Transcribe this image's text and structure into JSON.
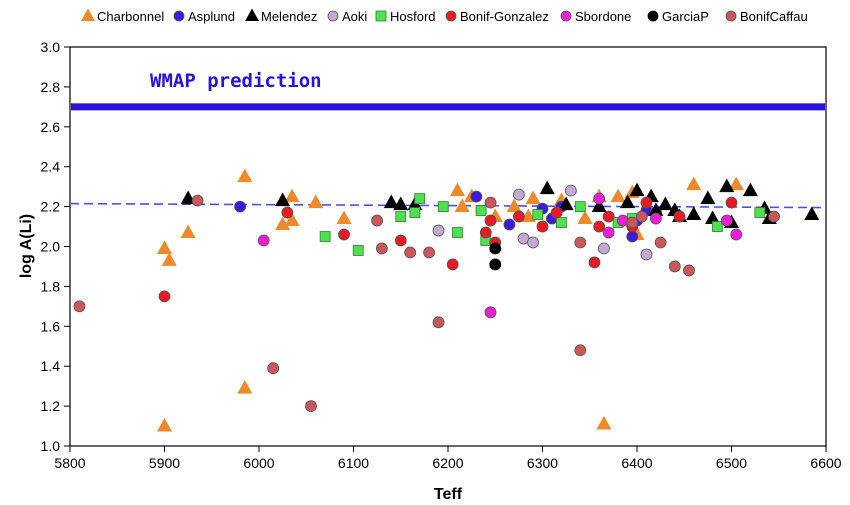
{
  "chart_data": {
    "type": "scatter",
    "xlabel": "Teff",
    "ylabel": "log A(Li)",
    "xlim": [
      5800,
      6600
    ],
    "ylim": [
      1.0,
      3.0
    ],
    "xticks": [
      "5800",
      "5900",
      "6000",
      "6100",
      "6200",
      "6300",
      "6400",
      "6500",
      "6600"
    ],
    "yticks": [
      "1.0",
      "1.2",
      "1.4",
      "1.6",
      "1.8",
      "2.0",
      "2.2",
      "2.4",
      "2.6",
      "2.8",
      "3.0"
    ],
    "grid": false,
    "legend_position": "top",
    "annotation": {
      "text": "WMAP prediction",
      "y": 2.7,
      "color": "#2b12d6"
    },
    "trend_line": {
      "x": [
        5800,
        6600
      ],
      "y": [
        2.215,
        2.195
      ],
      "color": "#4f4fe0"
    },
    "series": [
      {
        "name": "Charbonnel",
        "marker": "triangle",
        "color": "#ee8a2c",
        "points": [
          [
            5900,
            1.99
          ],
          [
            5900,
            1.1
          ],
          [
            5905,
            1.93
          ],
          [
            5925,
            2.07
          ],
          [
            5985,
            2.35
          ],
          [
            5985,
            1.29
          ],
          [
            6025,
            2.11
          ],
          [
            6035,
            2.13
          ],
          [
            6035,
            2.25
          ],
          [
            6060,
            2.22
          ],
          [
            6090,
            2.14
          ],
          [
            6210,
            2.28
          ],
          [
            6215,
            2.2
          ],
          [
            6225,
            2.25
          ],
          [
            6250,
            2.15
          ],
          [
            6270,
            2.2
          ],
          [
            6285,
            2.15
          ],
          [
            6290,
            2.24
          ],
          [
            6320,
            2.23
          ],
          [
            6345,
            2.14
          ],
          [
            6360,
            2.25
          ],
          [
            6365,
            1.11
          ],
          [
            6380,
            2.25
          ],
          [
            6395,
            2.27
          ],
          [
            6400,
            2.06
          ],
          [
            6460,
            2.31
          ],
          [
            6505,
            2.31
          ]
        ]
      },
      {
        "name": "Asplund",
        "marker": "circle",
        "color": "#3a1be0",
        "points": [
          [
            5980,
            2.2
          ],
          [
            6230,
            2.25
          ],
          [
            6265,
            2.11
          ],
          [
            6300,
            2.19
          ],
          [
            6310,
            2.14
          ],
          [
            6320,
            2.2
          ],
          [
            6395,
            2.05
          ],
          [
            6400,
            2.13
          ],
          [
            6410,
            2.18
          ],
          [
            6420,
            2.17
          ]
        ]
      },
      {
        "name": "Melendez",
        "marker": "triangle",
        "color": "#000000",
        "points": [
          [
            5925,
            2.24
          ],
          [
            6025,
            2.23
          ],
          [
            6140,
            2.22
          ],
          [
            6150,
            2.21
          ],
          [
            6165,
            2.21
          ],
          [
            6305,
            2.29
          ],
          [
            6325,
            2.21
          ],
          [
            6360,
            2.2
          ],
          [
            6390,
            2.22
          ],
          [
            6400,
            2.28
          ],
          [
            6415,
            2.25
          ],
          [
            6420,
            2.18
          ],
          [
            6430,
            2.21
          ],
          [
            6440,
            2.18
          ],
          [
            6445,
            2.15
          ],
          [
            6460,
            2.16
          ],
          [
            6475,
            2.24
          ],
          [
            6480,
            2.14
          ],
          [
            6495,
            2.3
          ],
          [
            6500,
            2.12
          ],
          [
            6520,
            2.28
          ],
          [
            6535,
            2.19
          ],
          [
            6540,
            2.14
          ],
          [
            6585,
            2.16
          ]
        ]
      },
      {
        "name": "Aoki",
        "marker": "circle",
        "color": "#c4a9d4",
        "points": [
          [
            6190,
            2.08
          ],
          [
            6275,
            2.26
          ],
          [
            6280,
            2.04
          ],
          [
            6290,
            2.02
          ],
          [
            6330,
            2.28
          ],
          [
            6365,
            1.99
          ],
          [
            6410,
            1.96
          ]
        ]
      },
      {
        "name": "Hosford",
        "marker": "square",
        "color": "#4de050",
        "points": [
          [
            6070,
            2.05
          ],
          [
            6105,
            1.98
          ],
          [
            6150,
            2.15
          ],
          [
            6165,
            2.17
          ],
          [
            6170,
            2.24
          ],
          [
            6195,
            2.2
          ],
          [
            6210,
            2.07
          ],
          [
            6235,
            2.18
          ],
          [
            6240,
            2.03
          ],
          [
            6295,
            2.16
          ],
          [
            6320,
            2.12
          ],
          [
            6340,
            2.2
          ],
          [
            6380,
            2.12
          ],
          [
            6395,
            2.14
          ],
          [
            6485,
            2.1
          ],
          [
            6530,
            2.17
          ]
        ]
      },
      {
        "name": "Bonif-Gonzalez",
        "marker": "circle",
        "color": "#e81a24",
        "points": [
          [
            5900,
            1.75
          ],
          [
            6030,
            2.17
          ],
          [
            6090,
            2.06
          ],
          [
            6150,
            2.03
          ],
          [
            6205,
            1.91
          ],
          [
            6240,
            2.07
          ],
          [
            6245,
            2.13
          ],
          [
            6250,
            2.02
          ],
          [
            6275,
            2.15
          ],
          [
            6300,
            2.1
          ],
          [
            6315,
            2.17
          ],
          [
            6355,
            1.92
          ],
          [
            6360,
            2.1
          ],
          [
            6370,
            2.15
          ],
          [
            6395,
            2.1
          ],
          [
            6410,
            2.22
          ],
          [
            6445,
            2.15
          ],
          [
            6500,
            2.22
          ]
        ]
      },
      {
        "name": "Sbordone",
        "marker": "circle",
        "color": "#f01ed6",
        "points": [
          [
            6005,
            2.03
          ],
          [
            6245,
            1.67
          ],
          [
            6360,
            2.24
          ],
          [
            6370,
            2.07
          ],
          [
            6385,
            2.13
          ],
          [
            6420,
            2.14
          ],
          [
            6495,
            2.13
          ],
          [
            6505,
            2.06
          ]
        ]
      },
      {
        "name": "GarciaP",
        "marker": "circle",
        "color": "#000000",
        "points": [
          [
            6250,
            1.99
          ],
          [
            6250,
            1.91
          ]
        ]
      },
      {
        "name": "BonifCaffau",
        "marker": "circle",
        "color": "#c9575c",
        "points": [
          [
            5810,
            1.7
          ],
          [
            5935,
            2.23
          ],
          [
            6015,
            1.39
          ],
          [
            6055,
            1.2
          ],
          [
            6125,
            2.13
          ],
          [
            6130,
            1.99
          ],
          [
            6160,
            1.97
          ],
          [
            6180,
            1.97
          ],
          [
            6190,
            1.62
          ],
          [
            6245,
            2.22
          ],
          [
            6340,
            2.02
          ],
          [
            6340,
            1.48
          ],
          [
            6395,
            2.12
          ],
          [
            6405,
            2.15
          ],
          [
            6425,
            2.02
          ],
          [
            6440,
            1.9
          ],
          [
            6455,
            1.88
          ],
          [
            6545,
            2.15
          ]
        ]
      }
    ]
  }
}
